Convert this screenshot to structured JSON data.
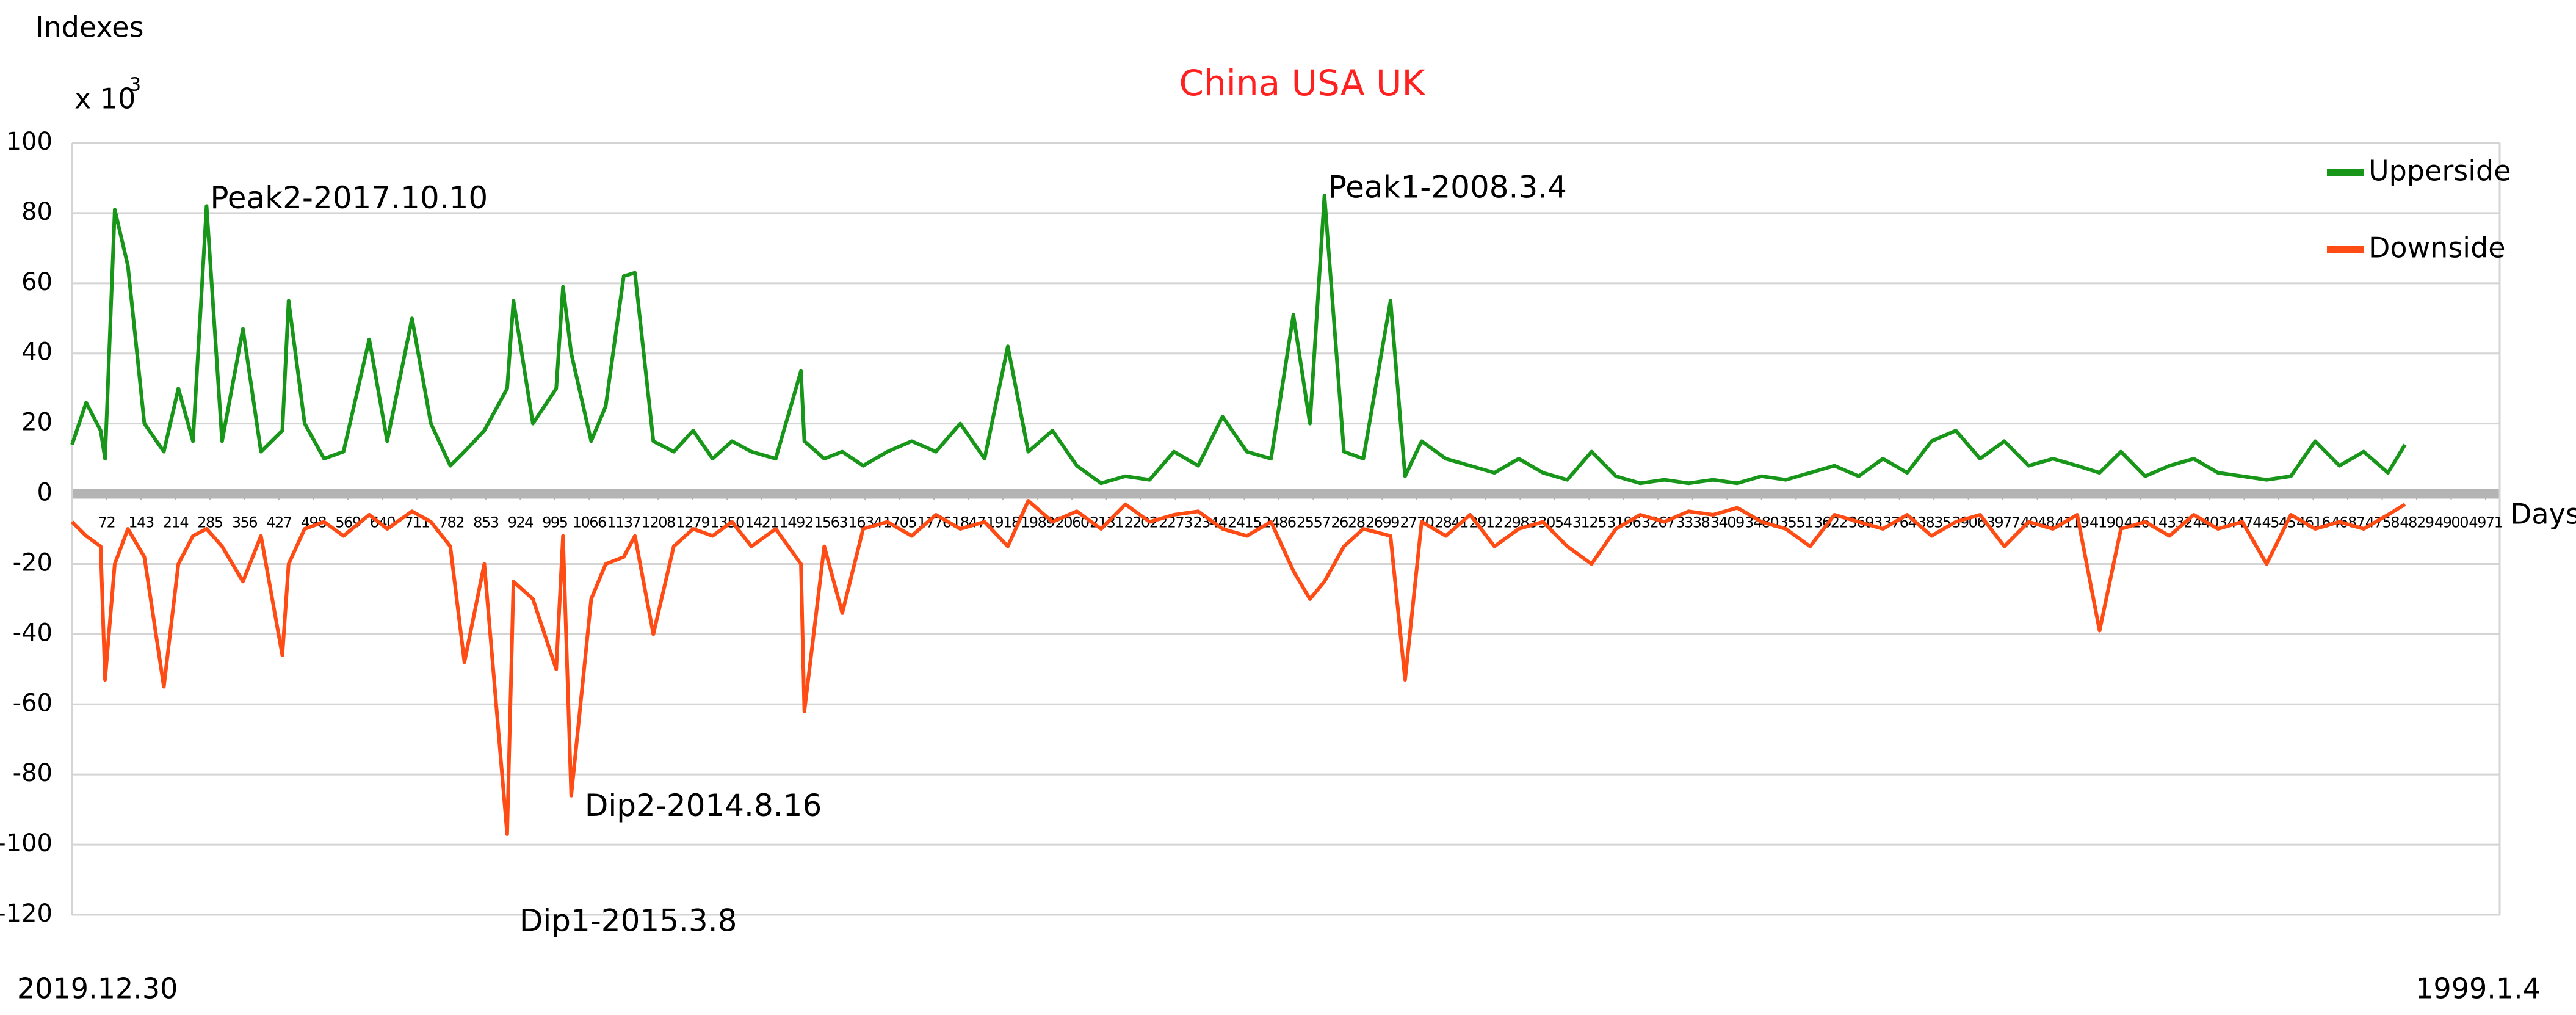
{
  "chart_data": {
    "type": "line",
    "title": "China  USA   UK",
    "y_label": "Indexes",
    "y_multiplier": {
      "base": "x 10",
      "exponent": "3"
    },
    "x_label": "Days",
    "x_start_label": "2019.12.30",
    "x_end_label": "1999.1.4",
    "x": [
      1,
      30,
      60,
      69,
      89,
      116,
      150,
      190,
      220,
      250,
      278,
      310,
      353,
      390,
      434,
      447,
      480,
      520,
      560,
      613,
      650,
      701,
      740,
      780,
      809,
      850,
      897,
      910,
      950,
      998,
      1012,
      1029,
      1070,
      1100,
      1137,
      1160,
      1198,
      1240,
      1280,
      1320,
      1360,
      1400,
      1450,
      1502,
      1509,
      1550,
      1587,
      1630,
      1680,
      1730,
      1780,
      1830,
      1880,
      1928,
      1970,
      2020,
      2070,
      2120,
      2170,
      2220,
      2270,
      2320,
      2370,
      2420,
      2470,
      2516,
      2550,
      2580,
      2620,
      2660,
      2716,
      2746,
      2780,
      2830,
      2880,
      2930,
      2980,
      3030,
      3080,
      3130,
      3180,
      3230,
      3280,
      3330,
      3380,
      3430,
      3480,
      3530,
      3580,
      3630,
      3680,
      3730,
      3780,
      3830,
      3880,
      3930,
      3980,
      4030,
      4080,
      4130,
      4176,
      4220,
      4270,
      4320,
      4370,
      4420,
      4470,
      4520,
      4570,
      4620,
      4670,
      4720,
      4770,
      4805
    ],
    "series": [
      {
        "name": "Upperside",
        "color": "#17961a",
        "values": [
          14,
          26,
          18,
          10,
          81,
          65,
          20,
          12,
          30,
          15,
          82,
          15,
          47,
          12,
          18,
          55,
          20,
          10,
          12,
          44,
          15,
          50,
          20,
          8,
          12,
          18,
          30,
          55,
          20,
          30,
          59,
          40,
          15,
          25,
          62,
          63,
          15,
          12,
          18,
          10,
          15,
          12,
          10,
          35,
          15,
          10,
          12,
          8,
          12,
          15,
          12,
          20,
          10,
          42,
          12,
          18,
          8,
          3,
          5,
          4,
          12,
          8,
          22,
          12,
          10,
          51,
          20,
          85,
          12,
          10,
          55,
          5,
          15,
          10,
          8,
          6,
          10,
          6,
          4,
          12,
          5,
          3,
          4,
          3,
          4,
          3,
          5,
          4,
          6,
          8,
          5,
          10,
          6,
          15,
          18,
          10,
          15,
          8,
          10,
          8,
          6,
          12,
          5,
          8,
          10,
          6,
          5,
          4,
          5,
          15,
          8,
          12,
          6,
          14
        ]
      },
      {
        "name": "Downside",
        "color": "#ff4b14",
        "values": [
          -8,
          -12,
          -15,
          -53,
          -20,
          -10,
          -18,
          -55,
          -20,
          -12,
          -10,
          -15,
          -25,
          -12,
          -46,
          -20,
          -10,
          -8,
          -12,
          -6,
          -10,
          -5,
          -8,
          -15,
          -48,
          -20,
          -97,
          -25,
          -30,
          -50,
          -12,
          -86,
          -30,
          -20,
          -18,
          -12,
          -40,
          -15,
          -10,
          -12,
          -8,
          -15,
          -10,
          -20,
          -62,
          -15,
          -34,
          -10,
          -8,
          -12,
          -6,
          -10,
          -8,
          -15,
          -2,
          -8,
          -5,
          -10,
          -3,
          -8,
          -6,
          -5,
          -10,
          -12,
          -8,
          -22,
          -30,
          -25,
          -15,
          -10,
          -12,
          -53,
          -8,
          -12,
          -6,
          -15,
          -10,
          -8,
          -15,
          -20,
          -10,
          -6,
          -8,
          -5,
          -6,
          -4,
          -8,
          -10,
          -15,
          -6,
          -8,
          -10,
          -6,
          -12,
          -8,
          -6,
          -15,
          -8,
          -10,
          -6,
          -39,
          -10,
          -8,
          -12,
          -6,
          -10,
          -8,
          -20,
          -6,
          -10,
          -8,
          -10,
          -6,
          -3
        ]
      }
    ],
    "annotations": [
      {
        "text": "Peak2-2017.10.10",
        "x": 278,
        "y": 82
      },
      {
        "text": "Peak1-2008.3.4",
        "x": 2580,
        "y": 85
      },
      {
        "text": "Dip2-2014.8.16",
        "x": 1029,
        "y": -86
      },
      {
        "text": "Dip1-2015.3.8",
        "x": 897,
        "y": -97
      }
    ],
    "xlim": [
      1,
      5000
    ],
    "xticks": [
      72,
      143,
      214,
      285,
      356,
      427,
      498,
      569,
      640,
      711,
      782,
      853,
      924,
      995,
      1066,
      1137,
      1208,
      1279,
      1350,
      1421,
      1492,
      1563,
      1634,
      1705,
      1776,
      1847,
      1918,
      1989,
      2060,
      2131,
      2202,
      2273,
      2344,
      2415,
      2486,
      2557,
      2628,
      2699,
      2770,
      2841,
      2912,
      2983,
      3054,
      3125,
      3196,
      3267,
      3338,
      3409,
      3480,
      3551,
      3622,
      3693,
      3764,
      3835,
      3906,
      3977,
      4048,
      4119,
      4190,
      4261,
      4332,
      4403,
      4474,
      4545,
      4616,
      4687,
      4758,
      4829,
      4900,
      4971
    ],
    "ylim": [
      -120,
      100
    ],
    "yticks": [
      -120,
      -100,
      -80,
      -60,
      -40,
      -20,
      0,
      20,
      40,
      60,
      80,
      100
    ],
    "grid": true,
    "legend": "top-right",
    "title_color": "#ff2020"
  }
}
